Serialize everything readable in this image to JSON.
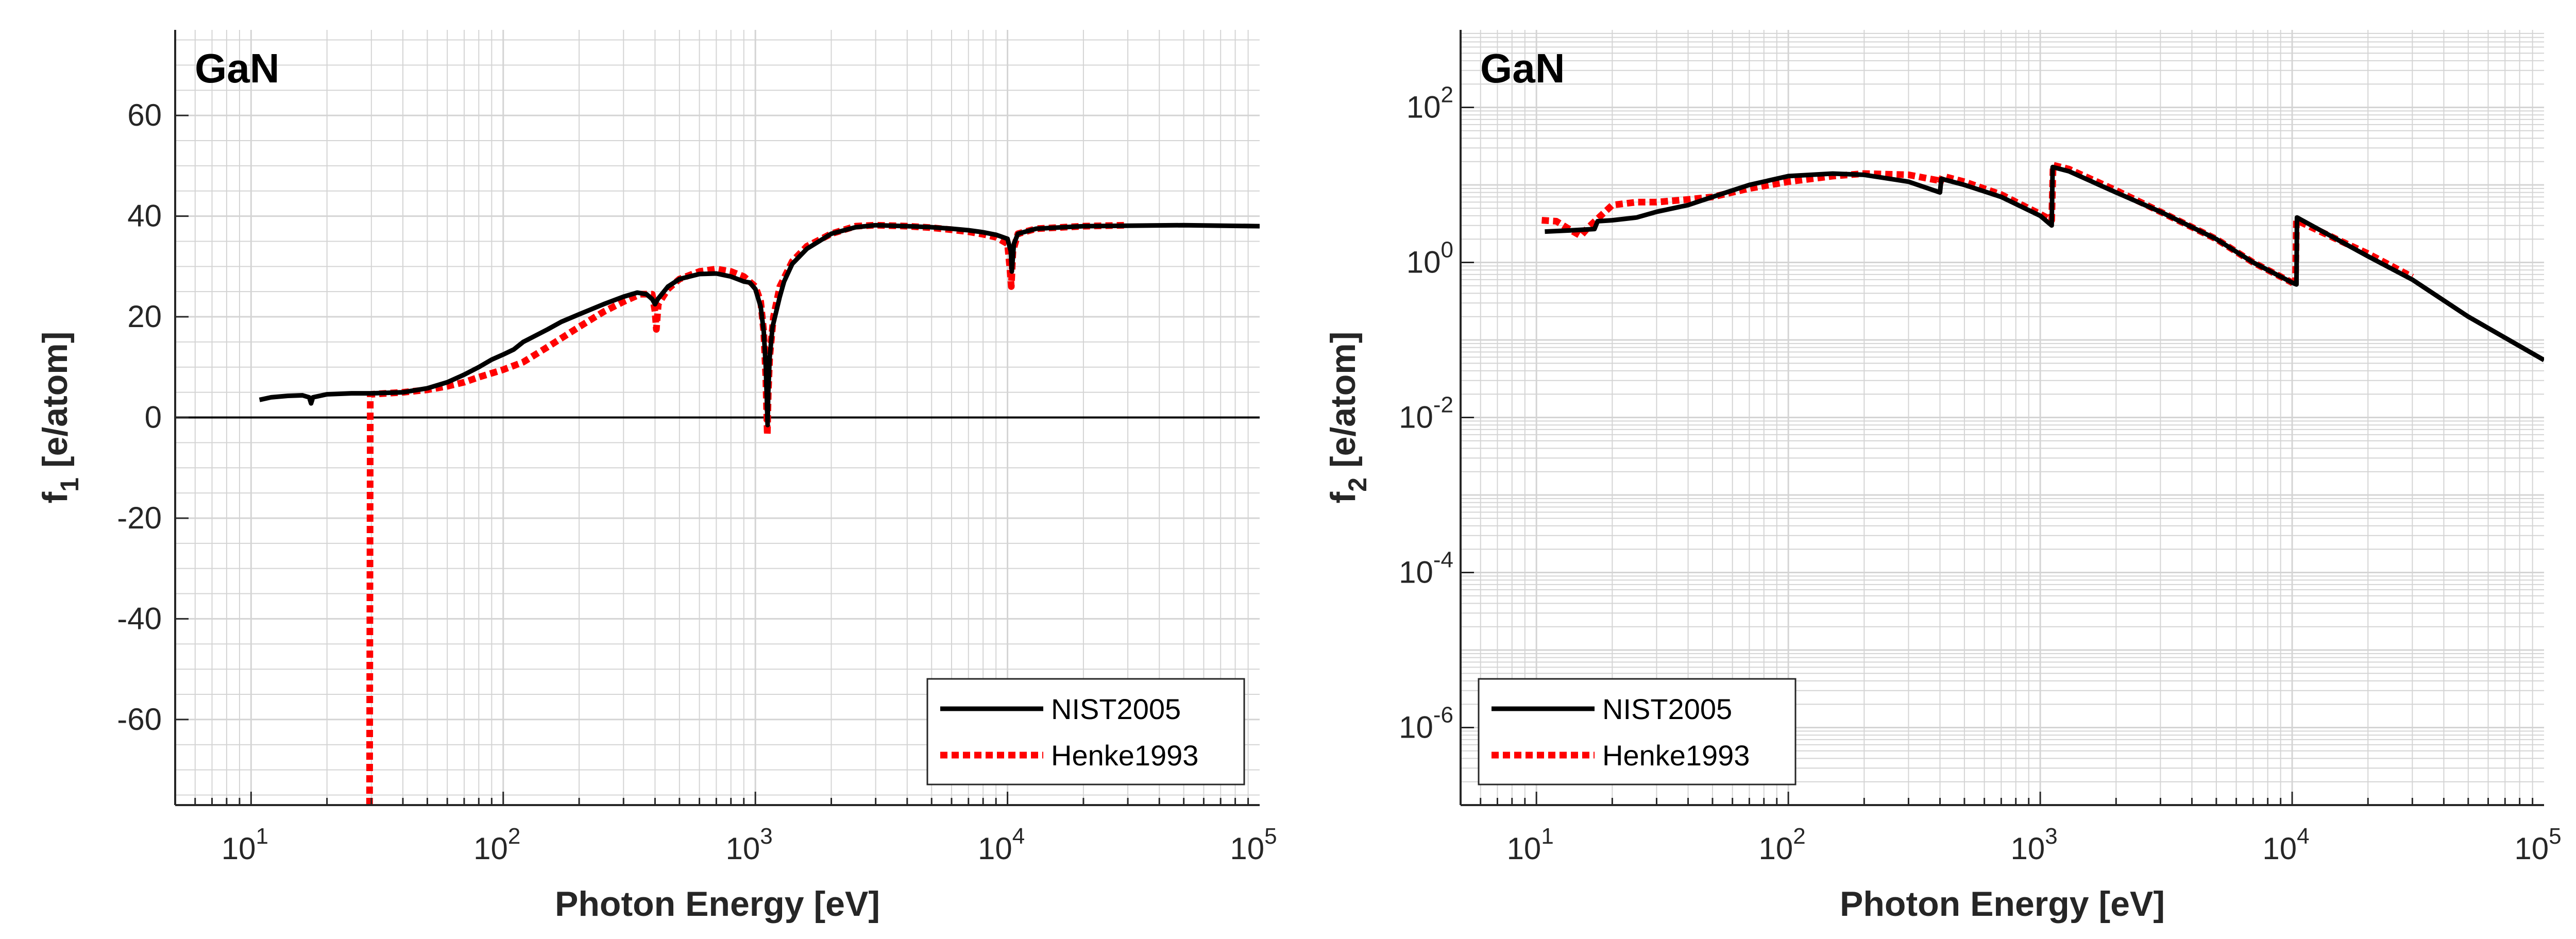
{
  "colors": {
    "nist": "#000000",
    "henke": "#ff0000",
    "grid": "#d4d4d4",
    "axis": "#262626"
  },
  "chart_data": [
    {
      "type": "line",
      "title": "GaN",
      "xlabel": "Photon Energy [eV]",
      "ylabel_main": "f",
      "ylabel_sub": "1",
      "ylabel_rest": " [e/atom]",
      "xscale": "log",
      "yscale": "linear",
      "xlim": [
        5,
        100000
      ],
      "ylim": [
        -77,
        77
      ],
      "grid": true,
      "legend_position": "bottom-right",
      "zero_line": true,
      "xticks": [
        {
          "value": 10,
          "base": "10",
          "exp": "1"
        },
        {
          "value": 100,
          "base": "10",
          "exp": "2"
        },
        {
          "value": 1000,
          "base": "10",
          "exp": "3"
        },
        {
          "value": 10000,
          "base": "10",
          "exp": "4"
        },
        {
          "value": 100000,
          "base": "10",
          "exp": "5"
        }
      ],
      "yticks": [
        {
          "value": 60,
          "label": "60"
        },
        {
          "value": 40,
          "label": "40"
        },
        {
          "value": 20,
          "label": "20"
        },
        {
          "value": 0,
          "label": "0"
        },
        {
          "value": -20,
          "label": "-20"
        },
        {
          "value": -40,
          "label": "-40"
        },
        {
          "value": -60,
          "label": "-60"
        }
      ],
      "series": [
        {
          "name": "NIST2005",
          "style": "solid",
          "points": [
            [
              10.8,
              3.5
            ],
            [
              12,
              4.0
            ],
            [
              14,
              4.3
            ],
            [
              16,
              4.4
            ],
            [
              17,
              4.0
            ],
            [
              17.3,
              2.8
            ],
            [
              17.6,
              4.0
            ],
            [
              20,
              4.6
            ],
            [
              25,
              4.8
            ],
            [
              30,
              4.8
            ],
            [
              40,
              5.0
            ],
            [
              50,
              5.8
            ],
            [
              60,
              7.0
            ],
            [
              70,
              8.5
            ],
            [
              80,
              10.0
            ],
            [
              90,
              11.5
            ],
            [
              100,
              12.5
            ],
            [
              110,
              13.5
            ],
            [
              120,
              15.0
            ],
            [
              150,
              17.5
            ],
            [
              170,
              19.0
            ],
            [
              200,
              20.5
            ],
            [
              250,
              22.5
            ],
            [
              300,
              24.0
            ],
            [
              340,
              24.8
            ],
            [
              370,
              24.5
            ],
            [
              390,
              23.5
            ],
            [
              400,
              22.5
            ],
            [
              410,
              23.5
            ],
            [
              450,
              26.0
            ],
            [
              500,
              27.5
            ],
            [
              600,
              28.5
            ],
            [
              700,
              28.6
            ],
            [
              800,
              28.0
            ],
            [
              850,
              27.5
            ],
            [
              900,
              27.0
            ],
            [
              950,
              26.8
            ],
            [
              1000,
              25.5
            ],
            [
              1050,
              22.0
            ],
            [
              1080,
              17.0
            ],
            [
              1100,
              10.0
            ],
            [
              1110,
              4.0
            ],
            [
              1118,
              -1.5
            ],
            [
              1125,
              5.0
            ],
            [
              1140,
              12.0
            ],
            [
              1170,
              18.0
            ],
            [
              1250,
              24.0
            ],
            [
              1300,
              27.0
            ],
            [
              1400,
              30.5
            ],
            [
              1600,
              33.5
            ],
            [
              2000,
              36.5
            ],
            [
              2500,
              37.8
            ],
            [
              3000,
              38.2
            ],
            [
              4000,
              38.0
            ],
            [
              5000,
              37.8
            ],
            [
              6000,
              37.5
            ],
            [
              7000,
              37.2
            ],
            [
              8000,
              36.8
            ],
            [
              9000,
              36.3
            ],
            [
              10000,
              35.5
            ],
            [
              10300,
              33.0
            ],
            [
              10400,
              29.0
            ],
            [
              10600,
              34.5
            ],
            [
              11000,
              36.5
            ],
            [
              13000,
              37.5
            ],
            [
              20000,
              38.0
            ],
            [
              50000,
              38.2
            ],
            [
              100000,
              38.0
            ]
          ]
        },
        {
          "name": "Henke1993",
          "style": "dotted",
          "points": [
            [
              29.5,
              -77
            ],
            [
              29.7,
              4.5
            ],
            [
              30,
              4.6
            ],
            [
              40,
              5.0
            ],
            [
              50,
              5.5
            ],
            [
              60,
              6.2
            ],
            [
              70,
              7.0
            ],
            [
              80,
              8.0
            ],
            [
              100,
              9.5
            ],
            [
              120,
              11.0
            ],
            [
              150,
              14.0
            ],
            [
              200,
              18.0
            ],
            [
              250,
              21.0
            ],
            [
              300,
              23.0
            ],
            [
              350,
              24.5
            ],
            [
              390,
              24.5
            ],
            [
              400,
              21.0
            ],
            [
              405,
              17.5
            ],
            [
              412,
              22.5
            ],
            [
              450,
              25.5
            ],
            [
              500,
              27.5
            ],
            [
              600,
              29.0
            ],
            [
              700,
              29.5
            ],
            [
              800,
              29.0
            ],
            [
              900,
              28.0
            ],
            [
              1000,
              26.0
            ],
            [
              1050,
              23.0
            ],
            [
              1080,
              17.0
            ],
            [
              1100,
              8.0
            ],
            [
              1115,
              -3.5
            ],
            [
              1125,
              5.0
            ],
            [
              1140,
              12.0
            ],
            [
              1180,
              20.0
            ],
            [
              1250,
              26.0
            ],
            [
              1400,
              31.0
            ],
            [
              1600,
              34.0
            ],
            [
              2000,
              36.5
            ],
            [
              2500,
              38.0
            ],
            [
              3000,
              38.2
            ],
            [
              4000,
              38.0
            ],
            [
              5000,
              37.7
            ],
            [
              6000,
              37.3
            ],
            [
              7000,
              36.9
            ],
            [
              8000,
              36.4
            ],
            [
              9000,
              35.8
            ],
            [
              10000,
              34.5
            ],
            [
              10200,
              30.0
            ],
            [
              10350,
              26.0
            ],
            [
              10500,
              33.0
            ],
            [
              11000,
              36.5
            ],
            [
              13000,
              37.5
            ],
            [
              20000,
              38.0
            ],
            [
              30000,
              38.2
            ]
          ]
        }
      ]
    },
    {
      "type": "line",
      "title": "GaN",
      "xlabel": "Photon Energy [eV]",
      "ylabel_main": "f",
      "ylabel_sub": "2",
      "ylabel_rest": " [e/atom]",
      "xscale": "log",
      "yscale": "log",
      "xlim": [
        5,
        100000
      ],
      "ylim": [
        1e-07,
        1000
      ],
      "grid": true,
      "legend_position": "bottom-left",
      "zero_line": false,
      "xticks": [
        {
          "value": 10,
          "base": "10",
          "exp": "1"
        },
        {
          "value": 100,
          "base": "10",
          "exp": "2"
        },
        {
          "value": 1000,
          "base": "10",
          "exp": "3"
        },
        {
          "value": 10000,
          "base": "10",
          "exp": "4"
        },
        {
          "value": 100000,
          "base": "10",
          "exp": "5"
        }
      ],
      "yticks": [
        {
          "value": 100,
          "base": "10",
          "exp": "2"
        },
        {
          "value": 1,
          "base": "10",
          "exp": "0"
        },
        {
          "value": 0.01,
          "base": "10",
          "exp": "-2"
        },
        {
          "value": 0.0001,
          "base": "10",
          "exp": "-4"
        },
        {
          "value": 1e-06,
          "base": "10",
          "exp": "-6"
        }
      ],
      "series": [
        {
          "name": "NIST2005",
          "style": "solid",
          "points": [
            [
              10.8,
              2.5
            ],
            [
              14,
              2.6
            ],
            [
              17,
              2.7
            ],
            [
              17.5,
              3.4
            ],
            [
              20,
              3.5
            ],
            [
              25,
              3.8
            ],
            [
              30,
              4.5
            ],
            [
              40,
              5.5
            ],
            [
              50,
              7.0
            ],
            [
              70,
              10.0
            ],
            [
              100,
              13.0
            ],
            [
              150,
              14.0
            ],
            [
              200,
              13.5
            ],
            [
              300,
              11.0
            ],
            [
              400,
              8.0
            ],
            [
              405,
              12.0
            ],
            [
              500,
              10.0
            ],
            [
              700,
              7.0
            ],
            [
              1000,
              4.0
            ],
            [
              1110,
              3.0
            ],
            [
              1120,
              17.0
            ],
            [
              1300,
              15.0
            ],
            [
              2000,
              8.0
            ],
            [
              3000,
              4.5
            ],
            [
              5000,
              2.0
            ],
            [
              7000,
              1.0
            ],
            [
              10000,
              0.55
            ],
            [
              10400,
              0.52
            ],
            [
              10450,
              3.8
            ],
            [
              15000,
              2.0
            ],
            [
              20000,
              1.2
            ],
            [
              30000,
              0.6
            ],
            [
              50000,
              0.2
            ],
            [
              100000,
              0.055
            ]
          ]
        },
        {
          "name": "Henke1993",
          "style": "dotted",
          "points": [
            [
              10.5,
              3.5
            ],
            [
              12,
              3.4
            ],
            [
              14,
              2.5
            ],
            [
              15,
              2.2
            ],
            [
              16,
              2.8
            ],
            [
              18,
              4.0
            ],
            [
              20,
              5.5
            ],
            [
              25,
              6.0
            ],
            [
              30,
              6.0
            ],
            [
              40,
              6.5
            ],
            [
              50,
              7.0
            ],
            [
              70,
              9.0
            ],
            [
              100,
              11.0
            ],
            [
              150,
              13.0
            ],
            [
              200,
              14.0
            ],
            [
              300,
              13.5
            ],
            [
              390,
              11.5
            ],
            [
              400,
              10.5
            ],
            [
              410,
              13.0
            ],
            [
              500,
              11.0
            ],
            [
              700,
              7.5
            ],
            [
              1000,
              4.2
            ],
            [
              1110,
              3.5
            ],
            [
              1125,
              18.0
            ],
            [
              1300,
              16.0
            ],
            [
              2000,
              8.5
            ],
            [
              3000,
              4.5
            ],
            [
              5000,
              2.0
            ],
            [
              7000,
              1.0
            ],
            [
              10000,
              0.55
            ],
            [
              10300,
              0.5
            ],
            [
              10400,
              3.5
            ],
            [
              15000,
              2.0
            ],
            [
              20000,
              1.3
            ],
            [
              30000,
              0.65
            ]
          ]
        }
      ]
    }
  ]
}
